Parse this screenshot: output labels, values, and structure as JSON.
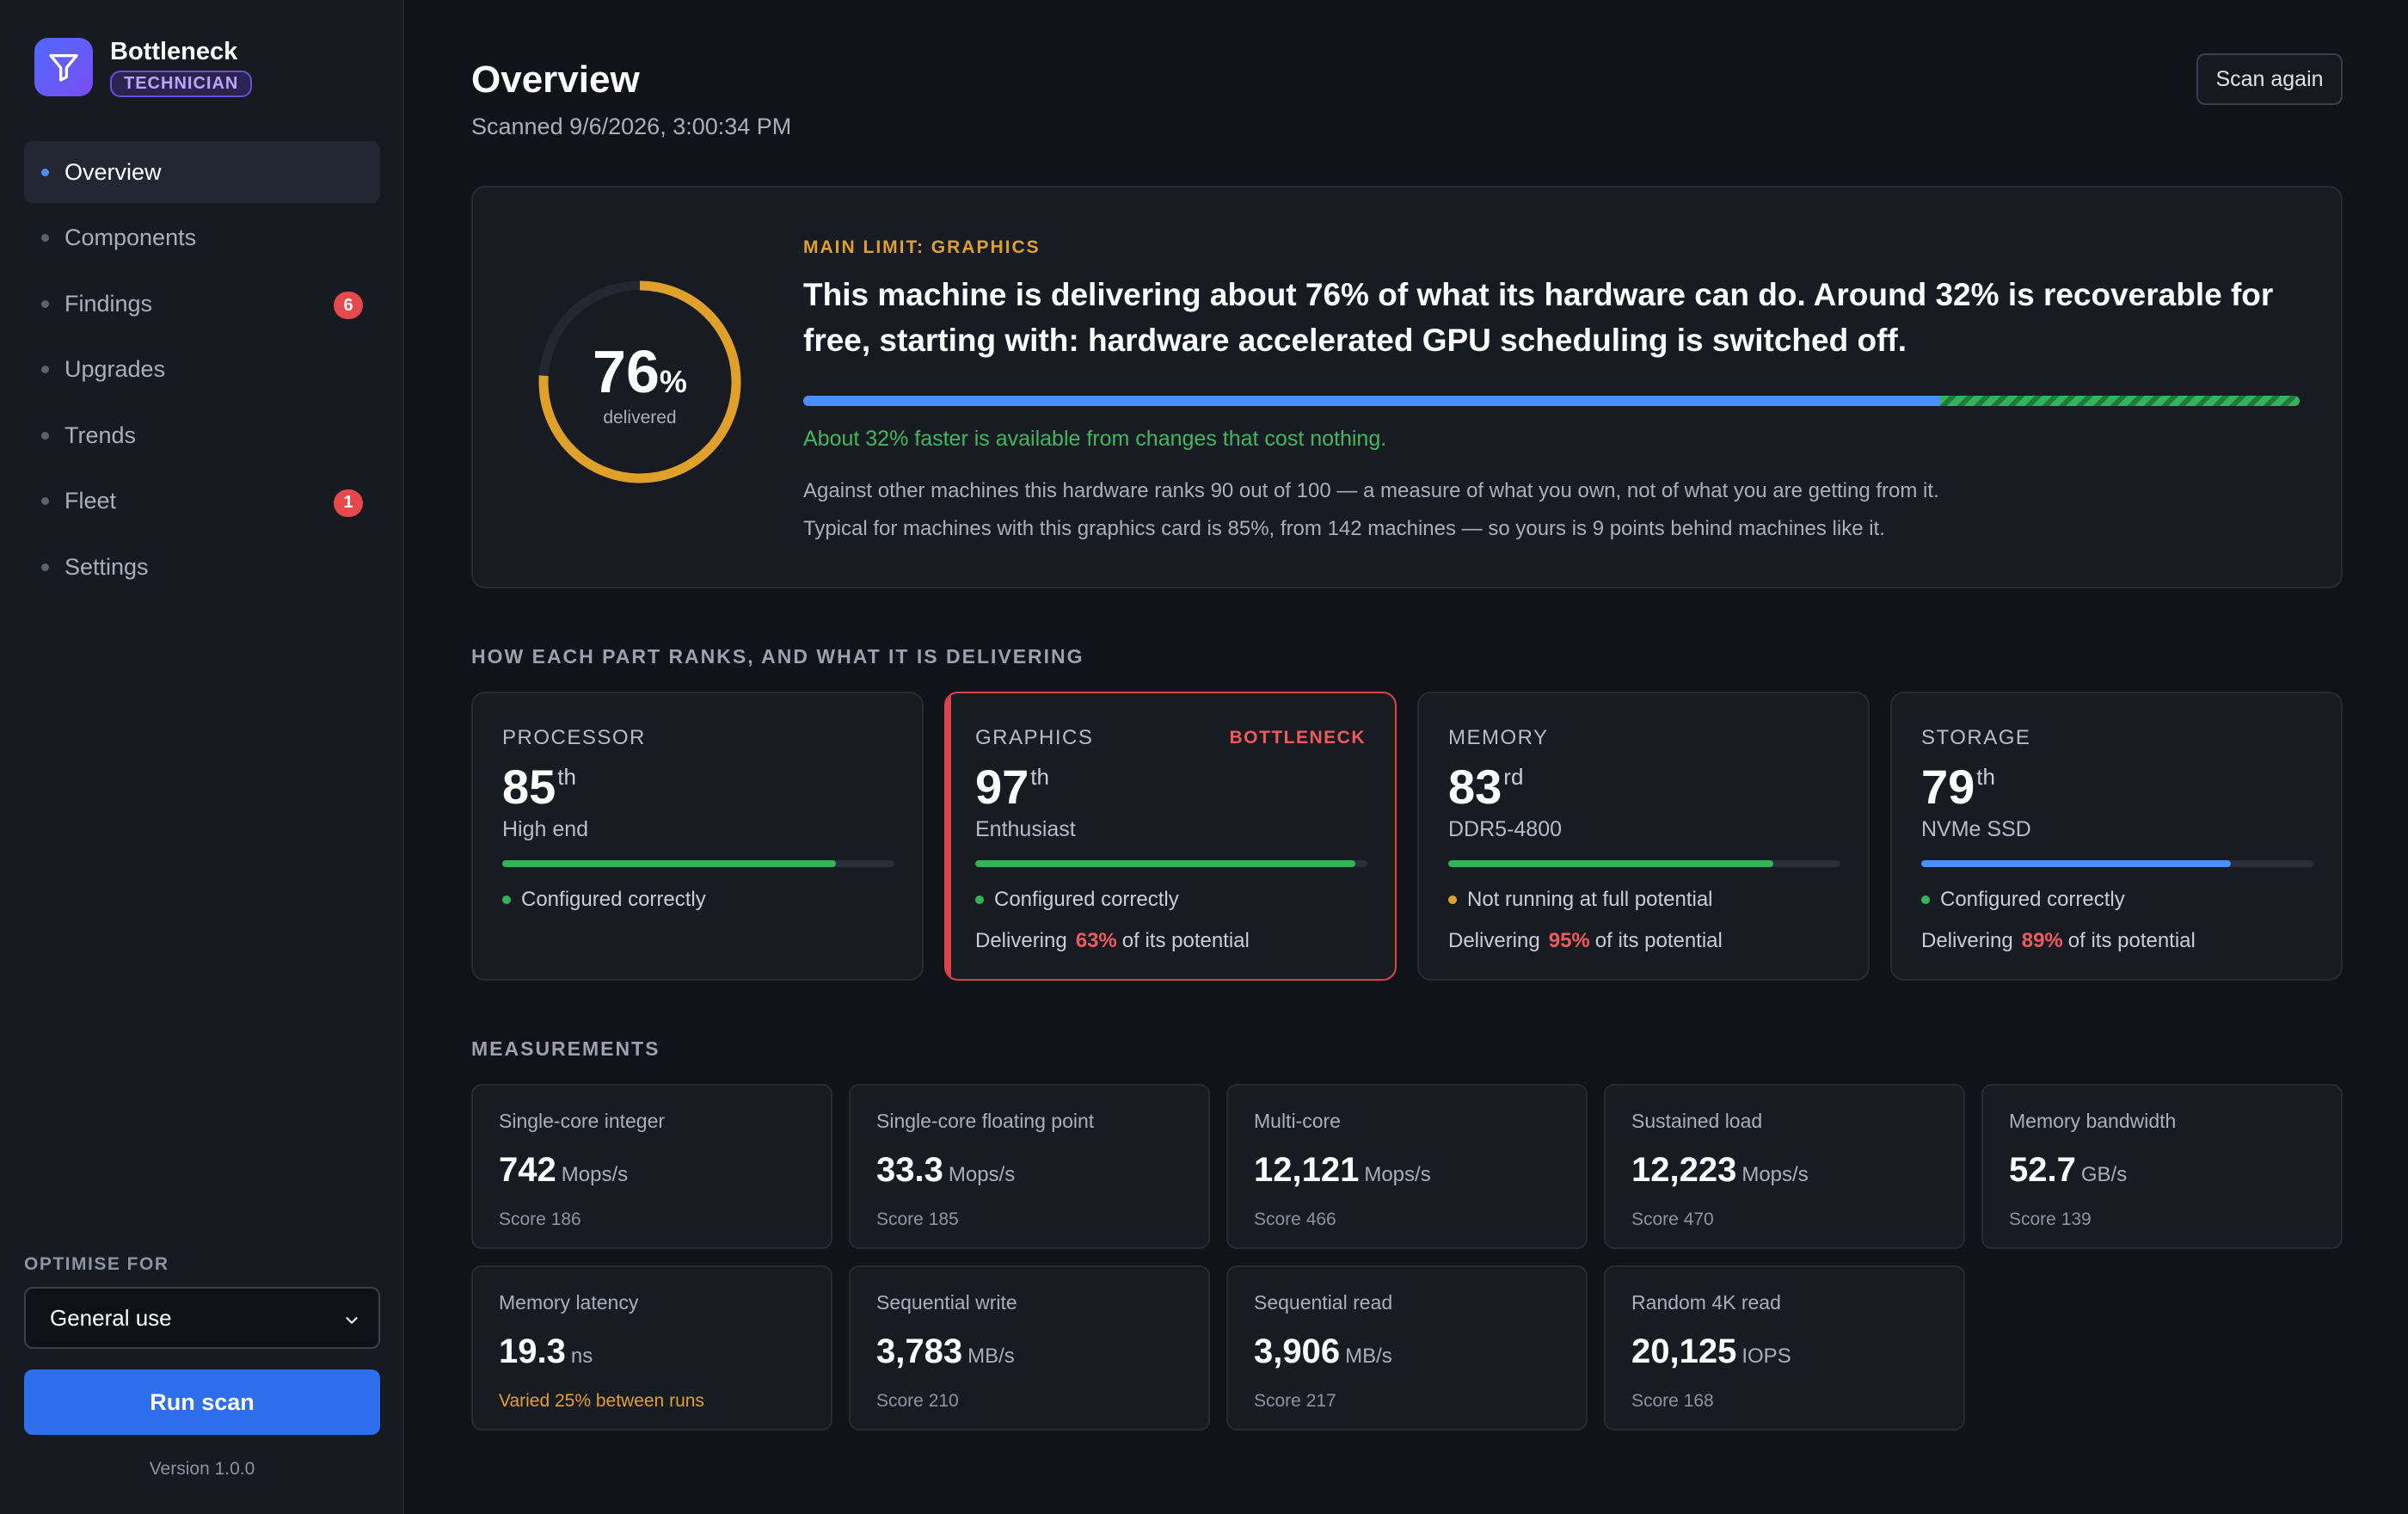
{
  "app": {
    "name": "Bottleneck",
    "role": "TECHNICIAN",
    "version": "Version 1.0.0"
  },
  "nav": [
    {
      "label": "Overview",
      "active": true
    },
    {
      "label": "Components"
    },
    {
      "label": "Findings",
      "badge": "6"
    },
    {
      "label": "Upgrades"
    },
    {
      "label": "Trends"
    },
    {
      "label": "Fleet",
      "badge": "1"
    },
    {
      "label": "Settings"
    }
  ],
  "optimise": {
    "label": "OPTIMISE FOR",
    "value": "General use",
    "run_label": "Run scan"
  },
  "header": {
    "title": "Overview",
    "scanned": "Scanned 9/6/2026, 3:00:34 PM",
    "scan_again": "Scan again"
  },
  "hero": {
    "delivered_value": "76",
    "delivered_unit": "%",
    "delivered_caption": "delivered",
    "delivered_fraction": 0.76,
    "main_limit": "MAIN LIMIT: GRAPHICS",
    "headline": "This machine is delivering about 76% of what its hardware can do. Around 32% is recoverable for free, starting with: hardware accelerated GPU scheduling is switched off.",
    "bar_delivered_fraction": 0.76,
    "bar_recoverable_fraction": 0.24,
    "free_note": "About 32% faster is available from changes that cost nothing.",
    "rank_note": "Against other machines this hardware ranks 90 out of 100 — a measure of what you own, not of what you are getting from it.",
    "typical_note": "Typical for machines with this graphics card is 85%, from 142 machines — so yours is 9 points behind machines like it.",
    "colors": {
      "gauge": "#e0a12a",
      "bar_blue": "#4c8dff",
      "bar_green": "#33b35a"
    }
  },
  "components_section": {
    "title": "HOW EACH PART RANKS, AND WHAT IT IS DELIVERING"
  },
  "components": [
    {
      "name": "PROCESSOR",
      "rank": "85",
      "suffix": "th",
      "tier": "High end",
      "bar_fraction": 0.85,
      "bar_color": "#33b35a",
      "status": "Configured correctly",
      "status_color": "#33b35a",
      "flag": "",
      "deliver_prefix": "",
      "deliver_pct": "",
      "deliver_suffix": ""
    },
    {
      "name": "GRAPHICS",
      "rank": "97",
      "suffix": "th",
      "tier": "Enthusiast",
      "bar_fraction": 0.97,
      "bar_color": "#33b35a",
      "status": "Configured correctly",
      "status_color": "#33b35a",
      "flag": "BOTTLENECK",
      "deliver_prefix": "Delivering",
      "deliver_pct": "63%",
      "deliver_suffix": "of its potential"
    },
    {
      "name": "MEMORY",
      "rank": "83",
      "suffix": "rd",
      "tier": "DDR5-4800",
      "bar_fraction": 0.83,
      "bar_color": "#33b35a",
      "status": "Not running at full potential",
      "status_color": "#e0a12a",
      "flag": "",
      "deliver_prefix": "Delivering",
      "deliver_pct": "95%",
      "deliver_suffix": "of its potential"
    },
    {
      "name": "STORAGE",
      "rank": "79",
      "suffix": "th",
      "tier": "NVMe SSD",
      "bar_fraction": 0.79,
      "bar_color": "#4c8dff",
      "status": "Configured correctly",
      "status_color": "#33b35a",
      "flag": "",
      "deliver_prefix": "Delivering",
      "deliver_pct": "89%",
      "deliver_suffix": "of its potential"
    }
  ],
  "measurements_section": {
    "title": "MEASUREMENTS"
  },
  "measurements": [
    {
      "label": "Single-core integer",
      "value": "742",
      "unit": "Mops/s",
      "score": "Score 186"
    },
    {
      "label": "Single-core floating point",
      "value": "33.3",
      "unit": "Mops/s",
      "score": "Score 185"
    },
    {
      "label": "Multi-core",
      "value": "12,121",
      "unit": "Mops/s",
      "score": "Score 466"
    },
    {
      "label": "Sustained load",
      "value": "12,223",
      "unit": "Mops/s",
      "score": "Score 470"
    },
    {
      "label": "Memory bandwidth",
      "value": "52.7",
      "unit": "GB/s",
      "score": "Score 139"
    },
    {
      "label": "Memory latency",
      "value": "19.3",
      "unit": "ns",
      "score": "Varied 25% between runs",
      "warn": true
    },
    {
      "label": "Sequential write",
      "value": "3,783",
      "unit": "MB/s",
      "score": "Score 210"
    },
    {
      "label": "Sequential read",
      "value": "3,906",
      "unit": "MB/s",
      "score": "Score 217"
    },
    {
      "label": "Random 4K read",
      "value": "20,125",
      "unit": "IOPS",
      "score": "Score 168"
    }
  ]
}
